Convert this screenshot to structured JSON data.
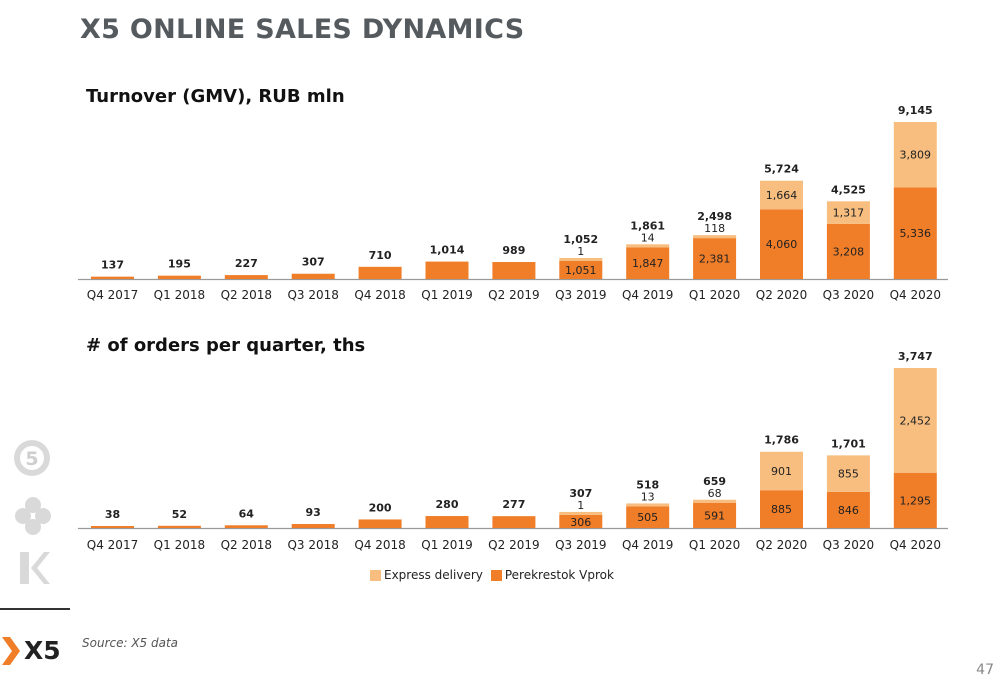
{
  "page": {
    "title": "X5 ONLINE SALES DYNAMICS",
    "source": "Source: X5 data",
    "page_number": "47",
    "logo_text": "X5"
  },
  "legend": {
    "express": "Express delivery",
    "vprok": "Perekrestok Vprok"
  },
  "colors": {
    "express": "#f7be80",
    "vprok": "#f07d28",
    "title": "#555a5e",
    "logo_accent": "#f07d28"
  },
  "chart_data": [
    {
      "type": "bar",
      "stacked": true,
      "title": "Turnover (GMV), RUB mln",
      "categories": [
        "Q4 2017",
        "Q1 2018",
        "Q2 2018",
        "Q3 2018",
        "Q4 2018",
        "Q1 2019",
        "Q2 2019",
        "Q3 2019",
        "Q4 2019",
        "Q1 2020",
        "Q2 2020",
        "Q3 2020",
        "Q4 2020"
      ],
      "series": [
        {
          "name": "Perekrestok Vprok",
          "values": [
            137,
            195,
            227,
            307,
            710,
            1014,
            989,
            1051,
            1847,
            2381,
            4060,
            3208,
            5336
          ]
        },
        {
          "name": "Express delivery",
          "values": [
            0,
            0,
            0,
            0,
            0,
            0,
            0,
            1,
            14,
            118,
            1664,
            1317,
            3809
          ]
        }
      ],
      "totals": [
        137,
        195,
        227,
        307,
        710,
        1014,
        989,
        1052,
        1861,
        2498,
        5724,
        4525,
        9145
      ],
      "total_labels": [
        "137",
        "195",
        "227",
        "307",
        "710",
        "1,014",
        "989",
        "1,052",
        "1,861",
        "2,498",
        "5,724",
        "4,525",
        "9,145"
      ],
      "vprok_labels": [
        "",
        "",
        "",
        "",
        "",
        "",
        "",
        "1,051",
        "1,847",
        "2,381",
        "4,060",
        "3,208",
        "5,336"
      ],
      "express_labels": [
        "",
        "",
        "",
        "",
        "",
        "",
        "",
        "1",
        "14",
        "118",
        "1,664",
        "1,317",
        "3,809"
      ],
      "ylim": [
        0,
        9145
      ]
    },
    {
      "type": "bar",
      "stacked": true,
      "title": "# of orders per quarter, ths",
      "categories": [
        "Q4 2017",
        "Q1 2018",
        "Q2 2018",
        "Q3 2018",
        "Q4 2018",
        "Q1 2019",
        "Q2 2019",
        "Q3 2019",
        "Q4 2019",
        "Q1 2020",
        "Q2 2020",
        "Q3 2020",
        "Q4 2020"
      ],
      "series": [
        {
          "name": "Perekrestok Vprok",
          "values": [
            38,
            52,
            64,
            93,
            200,
            280,
            277,
            306,
            505,
            591,
            885,
            846,
            1295
          ]
        },
        {
          "name": "Express delivery",
          "values": [
            0,
            0,
            0,
            0,
            0,
            0,
            0,
            1,
            13,
            68,
            901,
            855,
            2452
          ]
        }
      ],
      "totals": [
        38,
        52,
        64,
        93,
        200,
        280,
        277,
        307,
        518,
        659,
        1786,
        1701,
        3747
      ],
      "total_labels": [
        "38",
        "52",
        "64",
        "93",
        "200",
        "280",
        "277",
        "307",
        "518",
        "659",
        "1,786",
        "1,701",
        "3,747"
      ],
      "vprok_labels": [
        "",
        "",
        "",
        "",
        "",
        "",
        "",
        "306",
        "505",
        "591",
        "885",
        "846",
        "1,295"
      ],
      "express_labels": [
        "",
        "",
        "",
        "",
        "",
        "",
        "",
        "1",
        "13",
        "68",
        "901",
        "855",
        "2,452"
      ],
      "ylim": [
        0,
        3747
      ]
    }
  ]
}
